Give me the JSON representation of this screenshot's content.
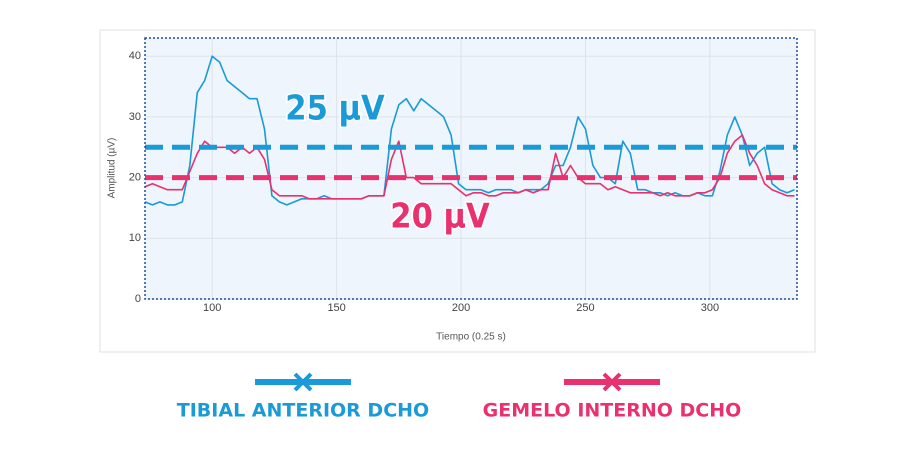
{
  "chart_data": {
    "type": "line",
    "x_label": "Tiempo (0.25 s)",
    "y_label": "Amplitud (µV)",
    "x": [
      73,
      76,
      79,
      82,
      85,
      88,
      91,
      94,
      97,
      100,
      103,
      106,
      109,
      112,
      115,
      118,
      121,
      124,
      127,
      130,
      133,
      136,
      139,
      142,
      145,
      148,
      151,
      154,
      157,
      160,
      163,
      166,
      169,
      172,
      175,
      178,
      181,
      184,
      187,
      190,
      193,
      196,
      199,
      202,
      205,
      208,
      211,
      214,
      217,
      220,
      223,
      226,
      229,
      232,
      235,
      238,
      241,
      244,
      247,
      250,
      253,
      256,
      259,
      262,
      265,
      268,
      271,
      274,
      277,
      280,
      283,
      286,
      289,
      292,
      295,
      298,
      301,
      304,
      307,
      310,
      313,
      316,
      319,
      322,
      325,
      328,
      331,
      334
    ],
    "series": [
      {
        "name": "TIBIAL ANTERIOR DCHO",
        "color": "#1a9ad6",
        "values": [
          16,
          15.5,
          16,
          15.5,
          15.5,
          16,
          22,
          34,
          36,
          40,
          39,
          36,
          35,
          34,
          33,
          33,
          28,
          17,
          16,
          15.5,
          16,
          16.5,
          16.5,
          16.5,
          17,
          16.5,
          16.5,
          16.5,
          16.5,
          16.5,
          17,
          17,
          17,
          28,
          32,
          33,
          31,
          33,
          32,
          31,
          30,
          27,
          19,
          18,
          18,
          18,
          17.5,
          18,
          18,
          18,
          17.5,
          18,
          18,
          18,
          19,
          22,
          22,
          25,
          30,
          28,
          22,
          20,
          20,
          19,
          26,
          24,
          18,
          18,
          17.5,
          17.5,
          17,
          17.5,
          17,
          17,
          17.5,
          17,
          17,
          21,
          27,
          30,
          27,
          22,
          24,
          25,
          19,
          18,
          17.5,
          18
        ]
      },
      {
        "name": "GEMELO INTERNO DCHO",
        "color": "#e8316e",
        "values": [
          18.5,
          19,
          18.5,
          18,
          18,
          18,
          21,
          24,
          26,
          25,
          25,
          25,
          24,
          25,
          24,
          25,
          23,
          18,
          17,
          17,
          17,
          17,
          16.5,
          16.5,
          16.5,
          16.5,
          16.5,
          16.5,
          16.5,
          16.5,
          17,
          17,
          17,
          23,
          26,
          20,
          20,
          19,
          19,
          19,
          19,
          19,
          18,
          17,
          17.5,
          17.5,
          17,
          17,
          17.5,
          17.5,
          17.5,
          18,
          17.5,
          18,
          18,
          24,
          20,
          22,
          20,
          19,
          19,
          19,
          18,
          18.5,
          18,
          17.5,
          17.5,
          17.5,
          17.5,
          17,
          17.5,
          17,
          17,
          17,
          17.5,
          17.5,
          18,
          20,
          24,
          26,
          27,
          24,
          22,
          19,
          18,
          17.5,
          17,
          17
        ]
      }
    ],
    "thresholds": [
      {
        "value": 25,
        "label": "25 µV",
        "color": "#1a9ad6"
      },
      {
        "value": 20,
        "label": "20 µV",
        "color": "#e8316e"
      }
    ],
    "xlim": [
      73,
      335
    ],
    "ylim": [
      0,
      43
    ],
    "xticks": [
      100,
      150,
      200,
      250,
      300
    ],
    "yticks": [
      0,
      10,
      20,
      30,
      40
    ],
    "grid": true
  }
}
